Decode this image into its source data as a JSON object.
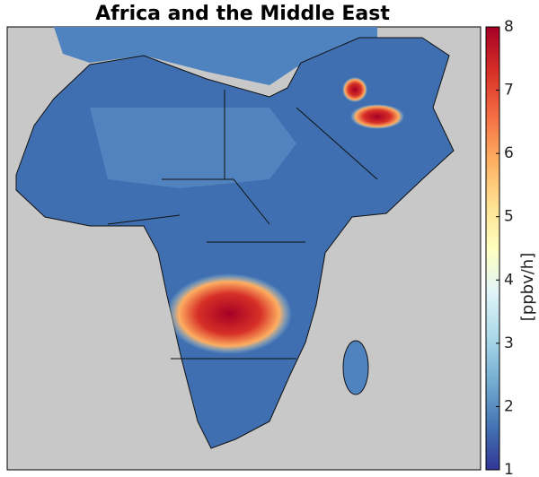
{
  "title": "Africa and the Middle East",
  "colorbar": {
    "label": "[ppbv/h]",
    "lim": [
      1,
      8
    ],
    "ticks": [
      1,
      2,
      3,
      4,
      5,
      6,
      7,
      8
    ],
    "colors": [
      "#313695",
      "#4575b4",
      "#74add1",
      "#abd9e9",
      "#e0f3f8",
      "#ffffbf",
      "#fee090",
      "#fdae61",
      "#f46d43",
      "#d73027",
      "#a50026"
    ]
  }
}
